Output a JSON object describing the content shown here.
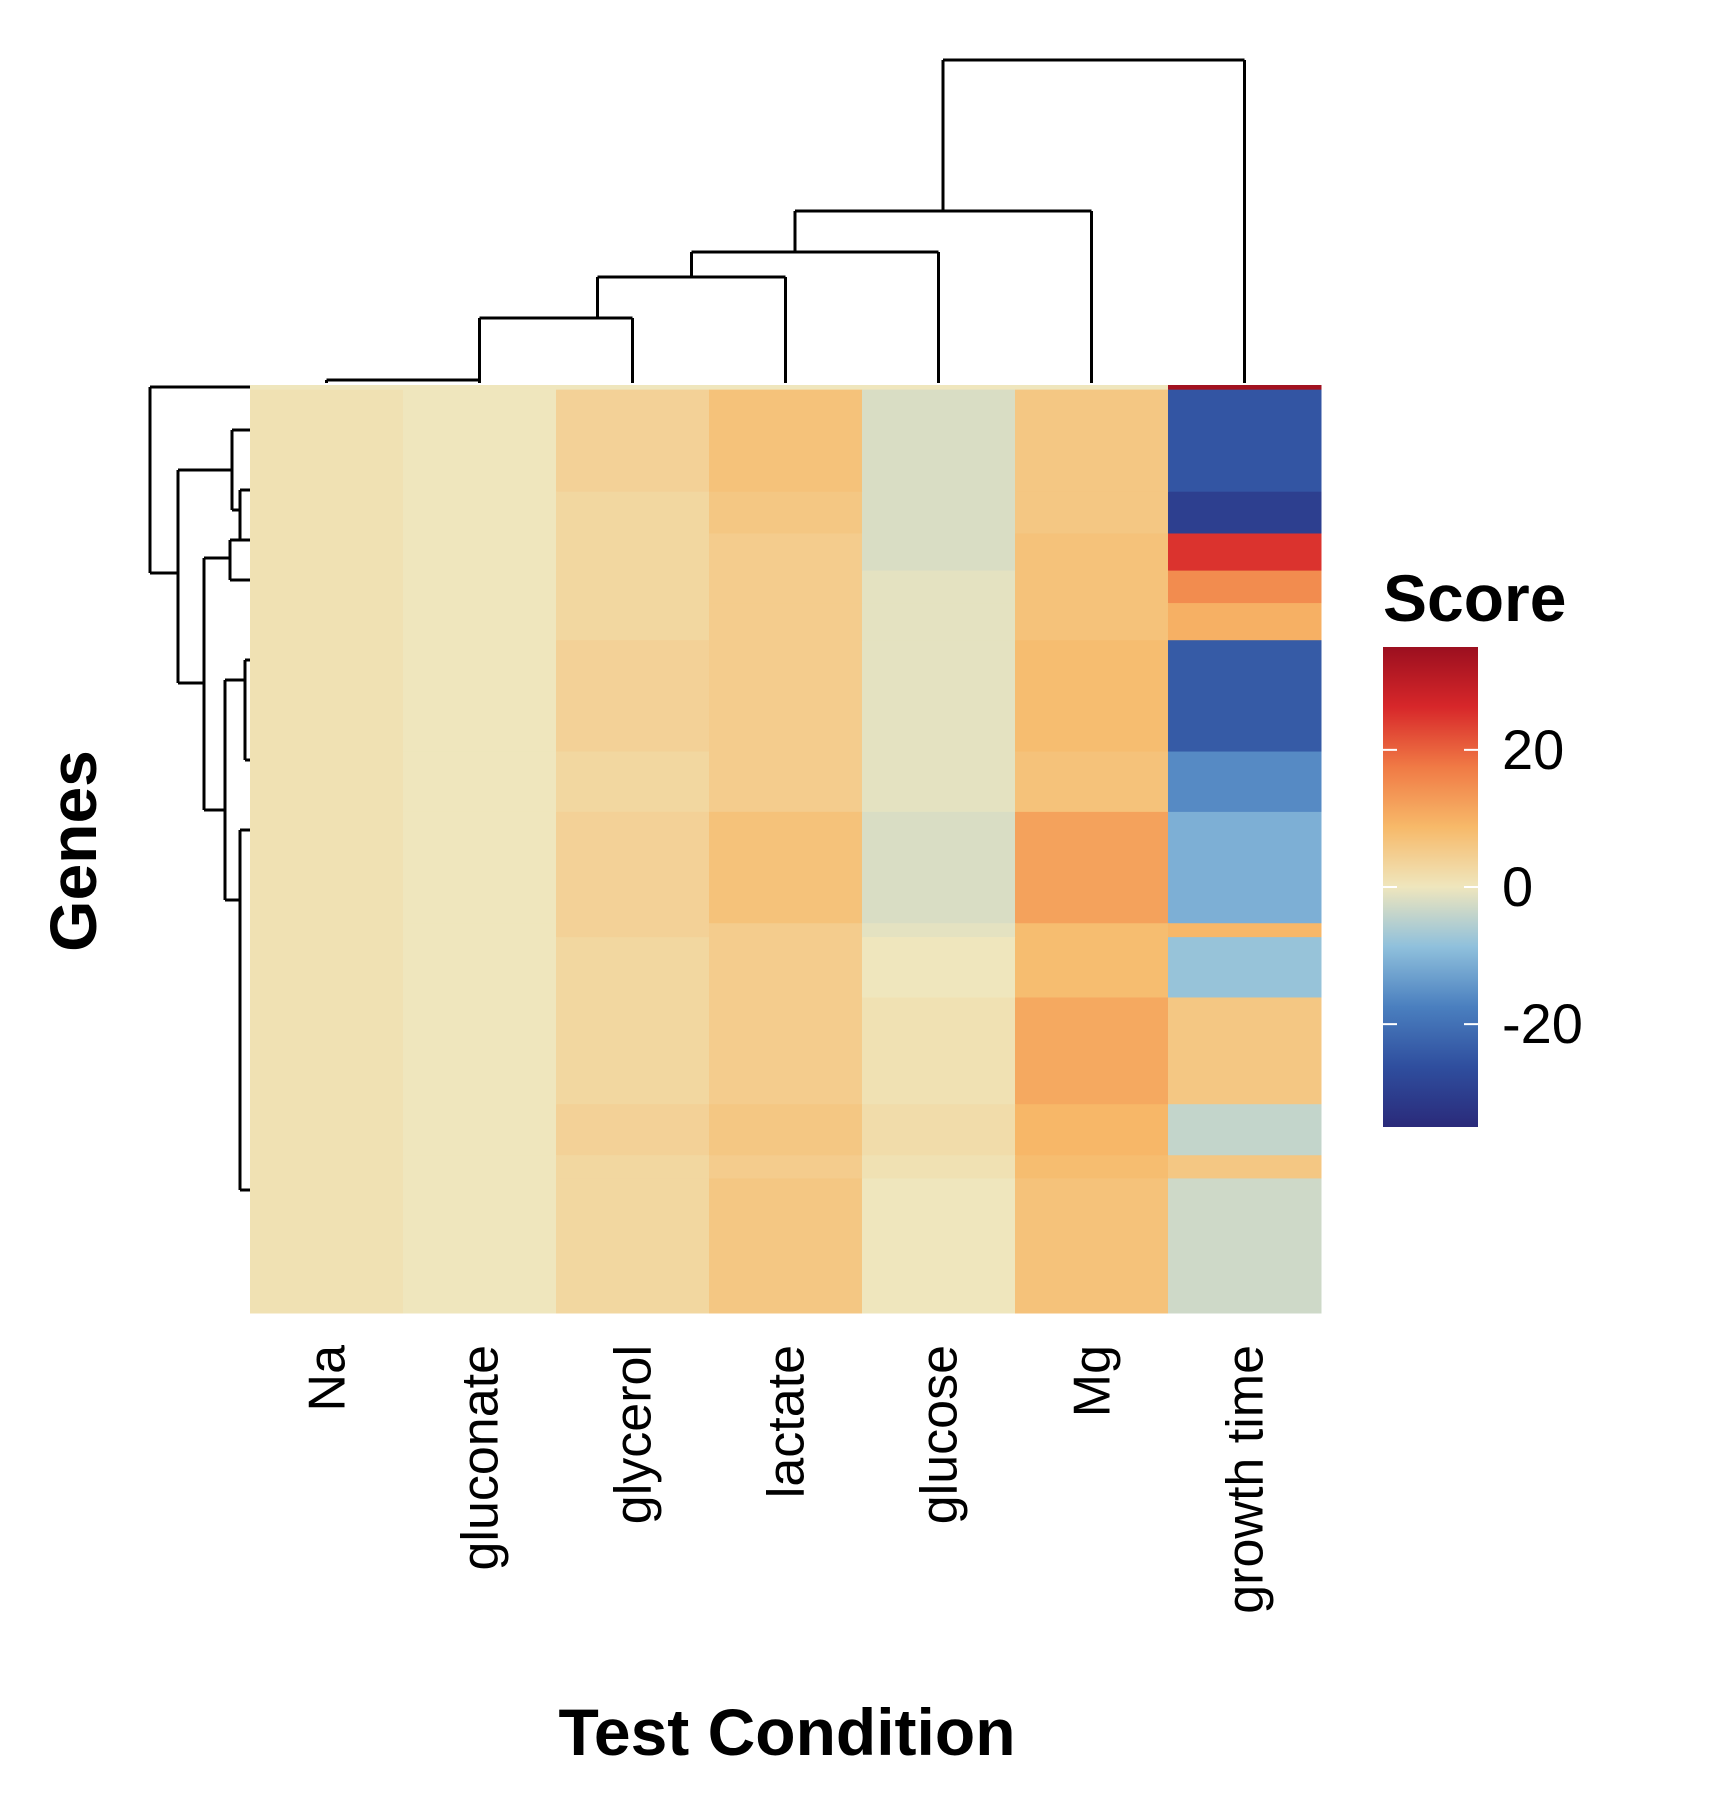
{
  "chart_data": {
    "type": "heatmap",
    "title": "",
    "xlabel": "Test Condition",
    "ylabel": "Genes",
    "columns": [
      "Na",
      "gluconate",
      "glycerol",
      "lactate",
      "glucose",
      "Mg",
      "growth time"
    ],
    "legend": {
      "title": "Score",
      "ticks": [
        20,
        0,
        -20
      ],
      "range": [
        -35,
        35
      ],
      "colors": [
        "#2a2a7a",
        "#2f4e9e",
        "#4a7fbf",
        "#8fc0dc",
        "#efe6bd",
        "#f7b969",
        "#f07a45",
        "#d7272a",
        "#9b0f1f"
      ],
      "placement": "right"
    },
    "row_blocks": [
      {
        "row_from": 0,
        "row_to": 1,
        "values": [
          0,
          0,
          0,
          0,
          0,
          0,
          34
        ]
      },
      {
        "row_from": 1,
        "row_to": 23,
        "values": [
          1,
          0,
          4,
          7,
          -2,
          6,
          -25
        ]
      },
      {
        "row_from": 23,
        "row_to": 32,
        "values": [
          1,
          0,
          3,
          6,
          -2,
          6,
          -30
        ]
      },
      {
        "row_from": 32,
        "row_to": 40,
        "values": [
          1,
          0,
          3,
          5,
          -2,
          7,
          25
        ]
      },
      {
        "row_from": 40,
        "row_to": 47,
        "values": [
          1,
          0,
          3,
          5,
          -1,
          7,
          15
        ]
      },
      {
        "row_from": 47,
        "row_to": 55,
        "values": [
          1,
          0,
          3,
          5,
          -1,
          7,
          10
        ]
      },
      {
        "row_from": 55,
        "row_to": 79,
        "values": [
          1,
          0,
          4,
          5,
          -1,
          8,
          -24
        ]
      },
      {
        "row_from": 79,
        "row_to": 92,
        "values": [
          1,
          0,
          3,
          5,
          -1,
          7,
          -16
        ]
      },
      {
        "row_from": 92,
        "row_to": 116,
        "values": [
          1,
          0,
          4,
          7,
          -2,
          12,
          -11
        ]
      },
      {
        "row_from": 116,
        "row_to": 119,
        "values": [
          1,
          0,
          4,
          5,
          -1,
          8,
          9
        ]
      },
      {
        "row_from": 119,
        "row_to": 132,
        "values": [
          1,
          0,
          3,
          5,
          0,
          8,
          -8
        ]
      },
      {
        "row_from": 132,
        "row_to": 155,
        "values": [
          1,
          0,
          3,
          5,
          1,
          11,
          6
        ]
      },
      {
        "row_from": 155,
        "row_to": 166,
        "values": [
          1,
          0,
          4,
          6,
          2,
          9,
          -4
        ]
      },
      {
        "row_from": 166,
        "row_to": 171,
        "values": [
          1,
          0,
          3,
          5,
          1,
          8,
          6
        ]
      },
      {
        "row_from": 171,
        "row_to": 200,
        "values": [
          1,
          0,
          3,
          6,
          0,
          7,
          -3
        ]
      }
    ]
  }
}
